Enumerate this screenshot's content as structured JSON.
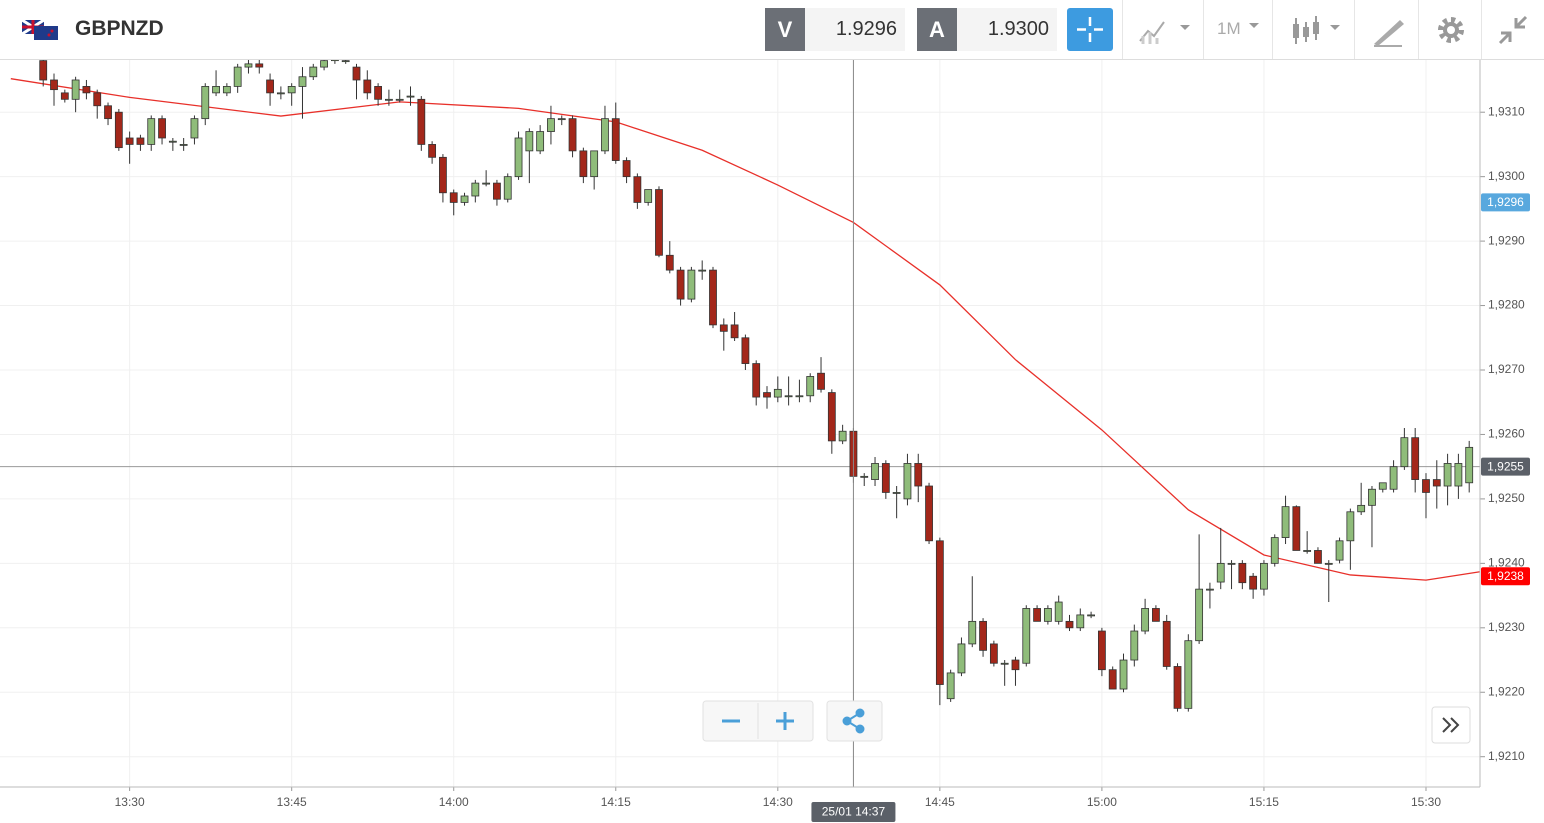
{
  "header": {
    "symbol": "GBPNZD",
    "bid_label": "V",
    "bid": "1.9296",
    "ask_label": "A",
    "ask": "1.9300",
    "timeframe": "1M"
  },
  "chart_data": {
    "type": "candlestick",
    "xlim": [
      "13:18",
      "15:35"
    ],
    "xticks": [
      "13:30",
      "13:45",
      "14:00",
      "14:15",
      "14:30",
      "14:45",
      "15:00",
      "15:15",
      "15:30"
    ],
    "ylim": [
      1.92053,
      1.93181
    ],
    "yticks": [
      {
        "value": 1.921,
        "label": "1,9210"
      },
      {
        "value": 1.922,
        "label": "1,9220"
      },
      {
        "value": 1.923,
        "label": "1,9230"
      },
      {
        "value": 1.924,
        "label": "1,9240"
      },
      {
        "value": 1.925,
        "label": "1,9250"
      },
      {
        "value": 1.926,
        "label": "1,9260"
      },
      {
        "value": 1.927,
        "label": "1,9270"
      },
      {
        "value": 1.928,
        "label": "1,9280"
      },
      {
        "value": 1.929,
        "label": "1,9290"
      },
      {
        "value": 1.93,
        "label": "1,9300"
      },
      {
        "value": 1.931,
        "label": "1,9310"
      }
    ],
    "grid": true,
    "up_color": "#8fbc7a",
    "down_color": "#a3271a",
    "x": [
      "13:22",
      "13:23",
      "13:24",
      "13:25",
      "13:26",
      "13:27",
      "13:28",
      "13:29",
      "13:30",
      "13:31",
      "13:32",
      "13:33",
      "13:34",
      "13:35",
      "13:36",
      "13:37",
      "13:38",
      "13:39",
      "13:40",
      "13:41",
      "13:42",
      "13:43",
      "13:44",
      "13:45",
      "13:46",
      "13:47",
      "13:48",
      "13:49",
      "13:50",
      "13:51",
      "13:52",
      "13:53",
      "13:54",
      "13:55",
      "13:56",
      "13:57",
      "13:58",
      "13:59",
      "14:00",
      "14:01",
      "14:02",
      "14:03",
      "14:04",
      "14:05",
      "14:06",
      "14:07",
      "14:08",
      "14:09",
      "14:10",
      "14:11",
      "14:12",
      "14:13",
      "14:14",
      "14:15",
      "14:16",
      "14:17",
      "14:18",
      "14:19",
      "14:20",
      "14:21",
      "14:22",
      "14:23",
      "14:24",
      "14:25",
      "14:26",
      "14:27",
      "14:28",
      "14:29",
      "14:30",
      "14:31",
      "14:32",
      "14:33",
      "14:34",
      "14:35",
      "14:36",
      "14:37",
      "14:38",
      "14:39",
      "14:40",
      "14:41",
      "14:42",
      "14:43",
      "14:44",
      "14:45",
      "14:46",
      "14:47",
      "14:48",
      "14:49",
      "14:50",
      "14:51",
      "14:52",
      "14:53",
      "14:54",
      "14:55",
      "14:56",
      "14:57",
      "14:58",
      "14:59",
      "15:00",
      "15:01",
      "15:02",
      "15:03",
      "15:04",
      "15:05",
      "15:06",
      "15:07",
      "15:08",
      "15:09",
      "15:10",
      "15:11",
      "15:12",
      "15:13",
      "15:14",
      "15:15",
      "15:16",
      "15:17",
      "15:18",
      "15:19",
      "15:20",
      "15:21",
      "15:22",
      "15:23",
      "15:24",
      "15:25",
      "15:26",
      "15:27",
      "15:28",
      "15:29",
      "15:30",
      "15:31",
      "15:32",
      "15:33",
      "15:34"
    ],
    "ohlc": [
      [
        1.9318,
        1.93185,
        1.9314,
        1.9315
      ],
      [
        1.9315,
        1.9316,
        1.9311,
        1.93135
      ],
      [
        1.9313,
        1.93135,
        1.93115,
        1.9312
      ],
      [
        1.9312,
        1.93155,
        1.931,
        1.9315
      ],
      [
        1.9314,
        1.9315,
        1.9312,
        1.9313
      ],
      [
        1.9313,
        1.93135,
        1.9309,
        1.9311
      ],
      [
        1.9311,
        1.93115,
        1.9308,
        1.9309
      ],
      [
        1.931,
        1.93105,
        1.9304,
        1.93045
      ],
      [
        1.9306,
        1.9307,
        1.9302,
        1.9305
      ],
      [
        1.9306,
        1.93065,
        1.9304,
        1.9305
      ],
      [
        1.9305,
        1.93095,
        1.9304,
        1.9309
      ],
      [
        1.9309,
        1.93095,
        1.9305,
        1.9306
      ],
      [
        1.93055,
        1.9306,
        1.9304,
        1.93055
      ],
      [
        1.9305,
        1.9306,
        1.9304,
        1.9305
      ],
      [
        1.9306,
        1.93095,
        1.9305,
        1.9309
      ],
      [
        1.9309,
        1.93145,
        1.9308,
        1.9314
      ],
      [
        1.9313,
        1.93165,
        1.93125,
        1.9314
      ],
      [
        1.9313,
        1.93145,
        1.93125,
        1.9314
      ],
      [
        1.9314,
        1.93175,
        1.9313,
        1.9317
      ],
      [
        1.9317,
        1.9319,
        1.9316,
        1.93175
      ],
      [
        1.93175,
        1.9319,
        1.9316,
        1.9317
      ],
      [
        1.9315,
        1.9316,
        1.9311,
        1.9313
      ],
      [
        1.9313,
        1.9314,
        1.9312,
        1.9313
      ],
      [
        1.9313,
        1.93145,
        1.9311,
        1.9314
      ],
      [
        1.9314,
        1.9317,
        1.9309,
        1.93155
      ],
      [
        1.93155,
        1.93175,
        1.9315,
        1.9317
      ],
      [
        1.9317,
        1.9319,
        1.93165,
        1.9318
      ],
      [
        1.9318,
        1.9319,
        1.93175,
        1.93185
      ],
      [
        1.9318,
        1.9319,
        1.93175,
        1.9318
      ],
      [
        1.9317,
        1.93175,
        1.9312,
        1.9315
      ],
      [
        1.9315,
        1.93165,
        1.9312,
        1.9313
      ],
      [
        1.9314,
        1.93145,
        1.9311,
        1.9312
      ],
      [
        1.9312,
        1.93135,
        1.9311,
        1.9312
      ],
      [
        1.9312,
        1.93135,
        1.93115,
        1.9312
      ],
      [
        1.93125,
        1.9314,
        1.9311,
        1.93125
      ],
      [
        1.9312,
        1.93125,
        1.9304,
        1.9305
      ],
      [
        1.9305,
        1.93055,
        1.9302,
        1.9303
      ],
      [
        1.9303,
        1.93035,
        1.9296,
        1.92975
      ],
      [
        1.92975,
        1.9298,
        1.9294,
        1.9296
      ],
      [
        1.9296,
        1.92975,
        1.92955,
        1.9297
      ],
      [
        1.9297,
        1.92995,
        1.9296,
        1.9299
      ],
      [
        1.9299,
        1.9301,
        1.92985,
        1.9299
      ],
      [
        1.9299,
        1.92995,
        1.92955,
        1.92965
      ],
      [
        1.92965,
        1.93005,
        1.9296,
        1.93
      ],
      [
        1.93,
        1.9307,
        1.92995,
        1.9306
      ],
      [
        1.9304,
        1.93075,
        1.9299,
        1.9307
      ],
      [
        1.9304,
        1.9308,
        1.93035,
        1.9307
      ],
      [
        1.9307,
        1.9311,
        1.9305,
        1.9309
      ],
      [
        1.9309,
        1.93095,
        1.9308,
        1.9309
      ],
      [
        1.9309,
        1.93095,
        1.9303,
        1.9304
      ],
      [
        1.9304,
        1.93045,
        1.9299,
        1.93
      ],
      [
        1.93,
        1.9304,
        1.9298,
        1.9304
      ],
      [
        1.9304,
        1.9311,
        1.93035,
        1.9309
      ],
      [
        1.9309,
        1.93115,
        1.9302,
        1.93025
      ],
      [
        1.93025,
        1.9303,
        1.9299,
        1.93
      ],
      [
        1.93,
        1.93005,
        1.9295,
        1.9296
      ],
      [
        1.9296,
        1.9298,
        1.92955,
        1.9298
      ],
      [
        1.9298,
        1.92985,
        1.92875,
        1.92878
      ],
      [
        1.92878,
        1.929,
        1.9285,
        1.92855
      ],
      [
        1.92855,
        1.9286,
        1.928,
        1.9281
      ],
      [
        1.9281,
        1.9286,
        1.92805,
        1.92855
      ],
      [
        1.92855,
        1.9287,
        1.9284,
        1.92855
      ],
      [
        1.92855,
        1.9286,
        1.92765,
        1.9277
      ],
      [
        1.9277,
        1.9278,
        1.9273,
        1.9276
      ],
      [
        1.9277,
        1.9279,
        1.92745,
        1.9275
      ],
      [
        1.9275,
        1.92755,
        1.927,
        1.9271
      ],
      [
        1.9271,
        1.92715,
        1.92645,
        1.92658
      ],
      [
        1.92665,
        1.92675,
        1.9264,
        1.92658
      ],
      [
        1.92658,
        1.9269,
        1.9265,
        1.9267
      ],
      [
        1.9266,
        1.9269,
        1.92645,
        1.9266
      ],
      [
        1.9266,
        1.92685,
        1.9265,
        1.9266
      ],
      [
        1.9266,
        1.92695,
        1.9265,
        1.9269
      ],
      [
        1.92695,
        1.9272,
        1.92665,
        1.9267
      ],
      [
        1.92665,
        1.9267,
        1.9257,
        1.9259
      ],
      [
        1.9259,
        1.92615,
        1.92585,
        1.92605
      ],
      [
        1.92605,
        1.9261,
        1.92525,
        1.92535
      ],
      [
        1.92535,
        1.9254,
        1.9252,
        1.92535
      ],
      [
        1.9253,
        1.92565,
        1.9252,
        1.92555
      ],
      [
        1.92555,
        1.9256,
        1.925,
        1.9251
      ],
      [
        1.9251,
        1.9252,
        1.9247,
        1.9251
      ],
      [
        1.925,
        1.9257,
        1.9249,
        1.92555
      ],
      [
        1.92555,
        1.9257,
        1.92495,
        1.9252
      ],
      [
        1.9252,
        1.92525,
        1.9243,
        1.92435
      ],
      [
        1.92435,
        1.9244,
        1.9218,
        1.92212
      ],
      [
        1.9219,
        1.92235,
        1.92185,
        1.9223
      ],
      [
        1.9223,
        1.92285,
        1.92225,
        1.92275
      ],
      [
        1.92275,
        1.9238,
        1.9227,
        1.9231
      ],
      [
        1.9231,
        1.92315,
        1.92255,
        1.92265
      ],
      [
        1.92275,
        1.9228,
        1.9224,
        1.92245
      ],
      [
        1.92245,
        1.9225,
        1.9221,
        1.92245
      ],
      [
        1.9225,
        1.92255,
        1.9221,
        1.92235
      ],
      [
        1.92245,
        1.92335,
        1.9224,
        1.9233
      ],
      [
        1.9233,
        1.92335,
        1.9231,
        1.9231
      ],
      [
        1.9231,
        1.92335,
        1.92305,
        1.9233
      ],
      [
        1.9231,
        1.9235,
        1.92305,
        1.9234
      ],
      [
        1.9231,
        1.9232,
        1.92295,
        1.923
      ],
      [
        1.923,
        1.9233,
        1.92295,
        1.9232
      ],
      [
        1.9232,
        1.92325,
        1.92315,
        1.9232
      ],
      [
        1.92295,
        1.923,
        1.92225,
        1.92235
      ],
      [
        1.92235,
        1.9224,
        1.92205,
        1.92205
      ],
      [
        1.92205,
        1.9226,
        1.922,
        1.9225
      ],
      [
        1.9225,
        1.92305,
        1.9224,
        1.92295
      ],
      [
        1.92295,
        1.92345,
        1.9229,
        1.9233
      ],
      [
        1.9233,
        1.92335,
        1.9231,
        1.9231
      ],
      [
        1.9231,
        1.9232,
        1.92235,
        1.9224
      ],
      [
        1.9224,
        1.92245,
        1.9217,
        1.92175
      ],
      [
        1.92175,
        1.9229,
        1.9217,
        1.9228
      ],
      [
        1.9228,
        1.92445,
        1.92275,
        1.9236
      ],
      [
        1.9236,
        1.9237,
        1.9233,
        1.9236
      ],
      [
        1.92371,
        1.92455,
        1.9236,
        1.924
      ],
      [
        1.924,
        1.92405,
        1.9236,
        1.924
      ],
      [
        1.924,
        1.92405,
        1.9236,
        1.9237
      ],
      [
        1.9238,
        1.92385,
        1.92345,
        1.9236
      ],
      [
        1.9236,
        1.92405,
        1.9235,
        1.924
      ],
      [
        1.924,
        1.92445,
        1.92395,
        1.9244
      ],
      [
        1.9244,
        1.92505,
        1.9243,
        1.92488
      ],
      [
        1.92488,
        1.9249,
        1.9242,
        1.9242
      ],
      [
        1.9242,
        1.9245,
        1.92415,
        1.9242
      ],
      [
        1.9242,
        1.92425,
        1.924,
        1.924
      ],
      [
        1.924,
        1.92405,
        1.9234,
        1.924
      ],
      [
        1.92405,
        1.9244,
        1.924,
        1.92435
      ],
      [
        1.92435,
        1.92485,
        1.9239,
        1.9248
      ],
      [
        1.9248,
        1.92525,
        1.92475,
        1.9249
      ],
      [
        1.9249,
        1.9252,
        1.92425,
        1.92515
      ],
      [
        1.92515,
        1.92525,
        1.9251,
        1.92525
      ],
      [
        1.92515,
        1.9256,
        1.9251,
        1.9255
      ],
      [
        1.9255,
        1.9261,
        1.92545,
        1.92595
      ],
      [
        1.92595,
        1.9261,
        1.9251,
        1.9253
      ],
      [
        1.9253,
        1.9254,
        1.9247,
        1.9251
      ],
      [
        1.9253,
        1.9256,
        1.92485,
        1.9252
      ],
      [
        1.9252,
        1.9257,
        1.9249,
        1.92555
      ],
      [
        1.9252,
        1.9257,
        1.925,
        1.92555
      ],
      [
        1.92525,
        1.9259,
        1.9251,
        1.9258
      ]
    ],
    "moving_average": {
      "color": "#e8302a",
      "x": [
        "13:19",
        "13:30",
        "13:44",
        "13:55",
        "14:06",
        "14:15",
        "14:23",
        "14:30",
        "14:37",
        "14:45",
        "14:52",
        "15:00",
        "15:08",
        "15:15",
        "15:23",
        "15:30",
        "15:35"
      ],
      "values": [
        1.93152,
        1.93123,
        1.93094,
        1.93116,
        1.93106,
        1.93085,
        1.93041,
        1.92987,
        1.92929,
        1.92832,
        1.92716,
        1.92607,
        1.92483,
        1.92413,
        1.92382,
        1.92374,
        1.92387
      ]
    },
    "last_price": 1.9255,
    "markers": [
      {
        "value": 1.9296,
        "label": "1,9296",
        "color": "#58a8de"
      },
      {
        "value": 1.9255,
        "label": "1,9255",
        "color": "#5b6068"
      },
      {
        "value": 1.9238,
        "label": "1,9238",
        "color": "#ff0000"
      }
    ],
    "crosshair": {
      "x": "14:37",
      "label": "25/01 14:37"
    }
  }
}
